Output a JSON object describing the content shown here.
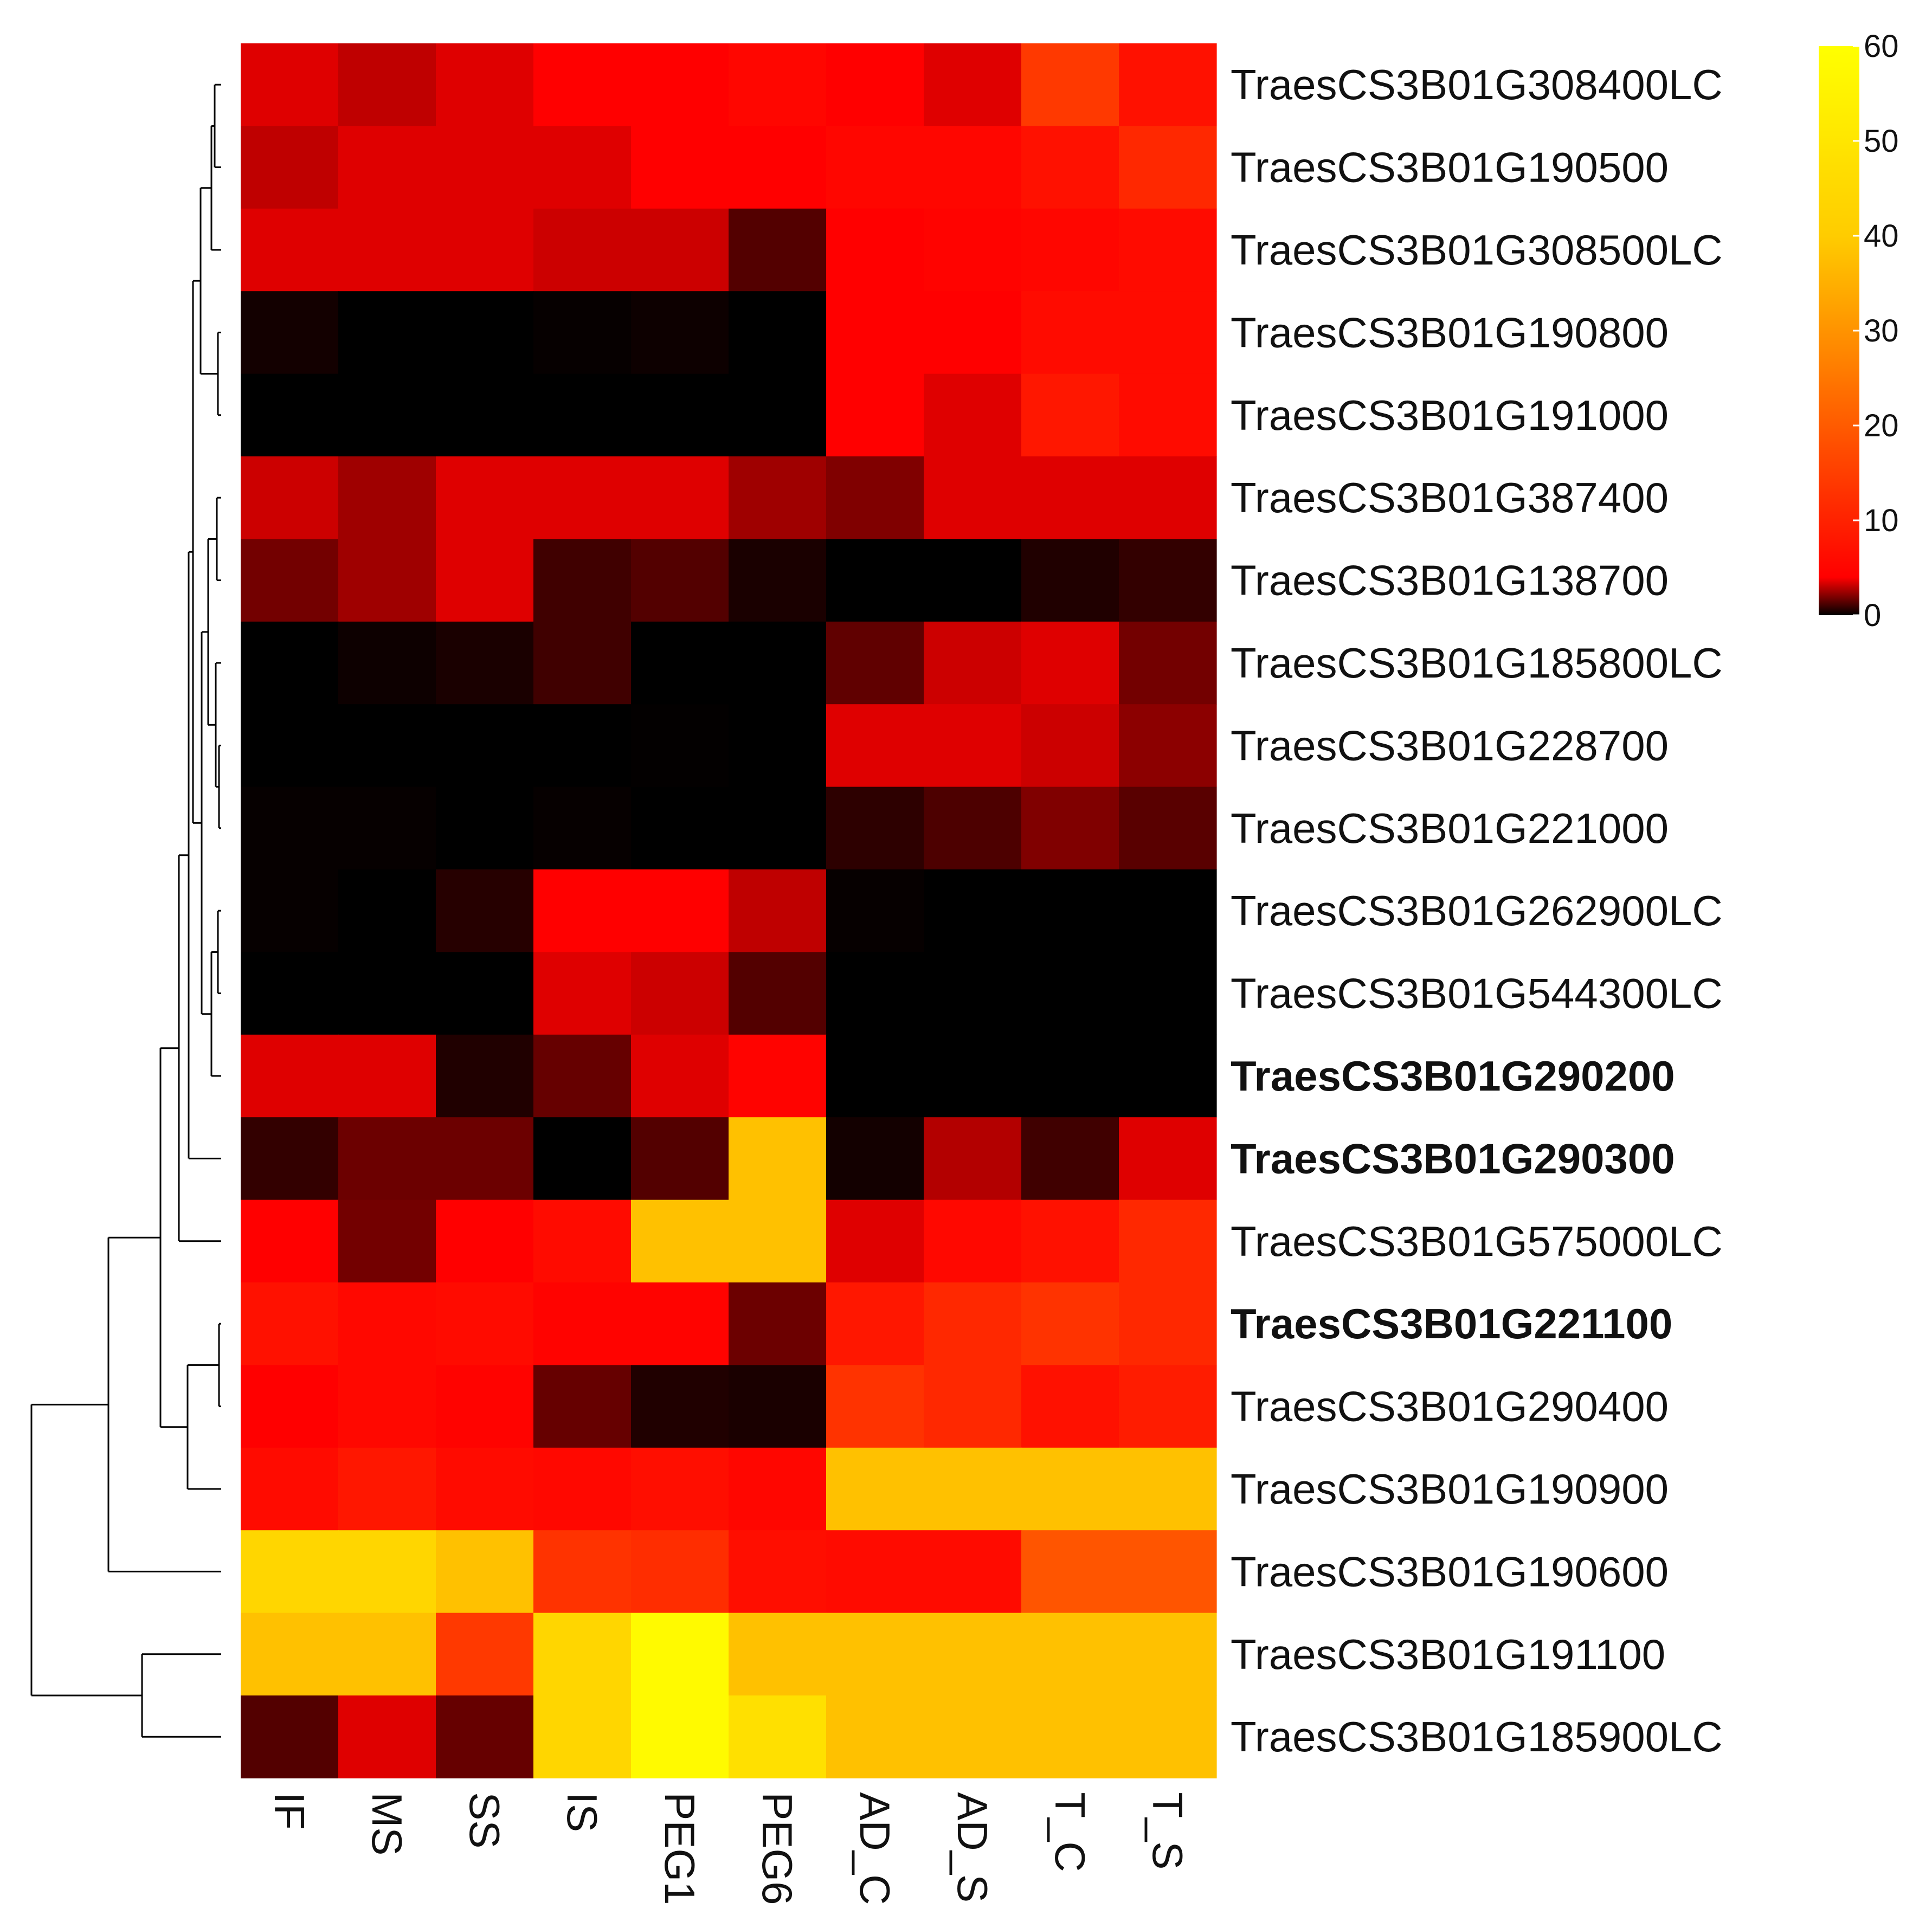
{
  "chart_data": {
    "type": "heatmap",
    "rows": [
      "TraesCS3B01G308400LC",
      "TraesCS3B01G190500",
      "TraesCS3B01G308500LC",
      "TraesCS3B01G190800",
      "TraesCS3B01G191000",
      "TraesCS3B01G387400",
      "TraesCS3B01G138700",
      "TraesCS3B01G185800LC",
      "TraesCS3B01G228700",
      "TraesCS3B01G221000",
      "TraesCS3B01G262900LC",
      "TraesCS3B01G544300LC",
      "TraesCS3B01G290200",
      "TraesCS3B01G290300",
      "TraesCS3B01G575000LC",
      "TraesCS3B01G221100",
      "TraesCS3B01G290400",
      "TraesCS3B01G190900",
      "TraesCS3B01G190600",
      "TraesCS3B01G191100",
      "TraesCS3B01G185900LC"
    ],
    "bold_rows": [
      "TraesCS3B01G290200",
      "TraesCS3B01G290300",
      "TraesCS3B01G221100"
    ],
    "columns": [
      "IF",
      "MS",
      "SS",
      "IS",
      "PEG1",
      "PEG6",
      "AD_C",
      "AD_S",
      "T_C",
      "T_S"
    ],
    "values": [
      [
        3.5,
        3,
        3.5,
        4,
        4,
        5,
        4,
        3.5,
        14,
        7
      ],
      [
        3,
        3.5,
        3.5,
        3.5,
        4,
        4,
        5,
        5,
        7,
        11
      ],
      [
        3.5,
        3.5,
        3.5,
        3.2,
        3.2,
        1.3,
        4,
        4.5,
        5,
        6
      ],
      [
        0.3,
        0,
        0,
        0.1,
        0.2,
        0,
        4,
        4,
        6,
        6
      ],
      [
        0,
        0,
        0,
        0,
        0,
        0,
        4,
        3.5,
        8,
        6
      ],
      [
        3.2,
        2.5,
        3.5,
        3.5,
        3.5,
        2.5,
        2,
        3.5,
        3.5,
        3.5
      ],
      [
        1.8,
        2.5,
        3.5,
        1,
        1.3,
        0.4,
        0,
        0,
        0.5,
        0.8
      ],
      [
        0,
        0.2,
        0.4,
        1,
        0,
        0,
        1.5,
        3.2,
        3.5,
        1.8
      ],
      [
        0,
        0,
        0,
        0,
        0.05,
        0,
        3.5,
        3.5,
        3.2,
        2.2
      ],
      [
        0.1,
        0.1,
        0,
        0.1,
        0,
        0,
        0.7,
        1.2,
        2,
        1.4
      ],
      [
        0.1,
        0,
        0.6,
        4,
        4,
        3,
        0.1,
        0,
        0,
        0
      ],
      [
        0,
        0,
        0,
        3.5,
        3.2,
        1.3,
        0,
        0,
        0,
        0
      ],
      [
        3.5,
        3.5,
        0.5,
        1.6,
        3.5,
        4.5,
        0,
        0,
        0,
        0
      ],
      [
        0.8,
        1.7,
        1.7,
        0,
        1.3,
        38,
        0.3,
        2.8,
        1,
        3.5
      ],
      [
        4,
        1.8,
        4,
        6,
        38,
        38,
        3.5,
        5.5,
        7,
        11
      ],
      [
        7,
        5.5,
        6,
        4.5,
        4.5,
        1.7,
        8,
        11,
        13,
        11
      ],
      [
        4,
        5.5,
        4.5,
        1.6,
        0.5,
        0.4,
        13,
        11,
        7,
        9
      ],
      [
        6,
        8,
        6,
        5.5,
        6.5,
        5,
        38,
        38,
        38,
        38
      ],
      [
        44,
        44,
        38,
        13,
        12,
        6.5,
        6,
        6,
        19,
        19
      ],
      [
        38,
        38,
        14,
        44,
        58,
        38,
        38,
        38,
        38,
        38
      ],
      [
        1.3,
        3.5,
        1.6,
        44,
        58,
        48,
        38,
        38,
        38,
        38
      ]
    ],
    "colorscale": [
      "#000000",
      "#ff0000",
      "#ffcc00",
      "#ffff00"
    ],
    "colorbar": {
      "min": 0,
      "max": 60,
      "ticks": [
        0,
        10,
        20,
        30,
        40,
        50,
        60
      ]
    }
  }
}
